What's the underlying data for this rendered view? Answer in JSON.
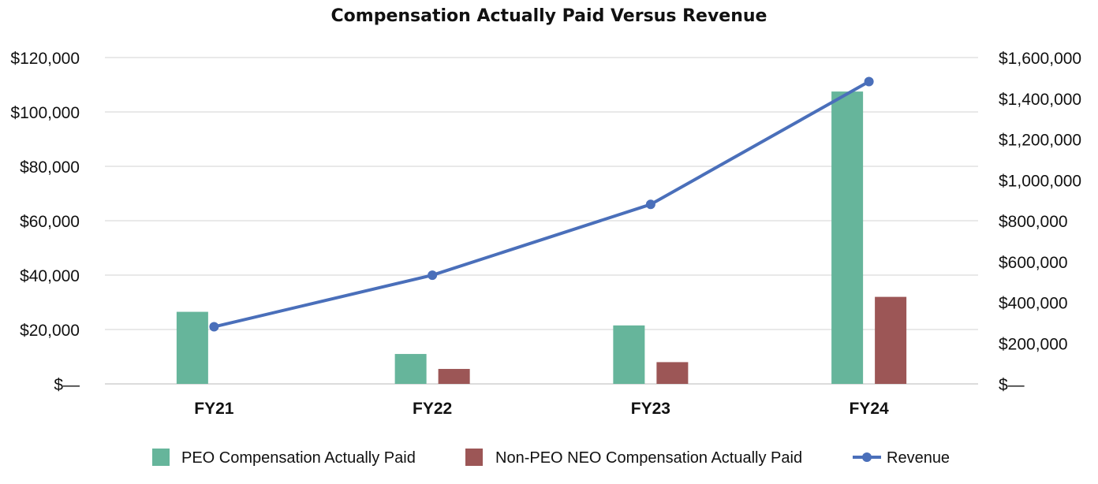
{
  "chart_data": {
    "type": "bar",
    "title": "Compensation Actually Paid Versus Revenue",
    "categories": [
      "FY21",
      "FY22",
      "FY23",
      "FY24"
    ],
    "series": [
      {
        "name": "PEO Compensation Actually Paid",
        "kind": "bar",
        "axis": "left",
        "color": "#66b59b",
        "values": [
          26500,
          11000,
          21500,
          107500
        ]
      },
      {
        "name": "Non-PEO NEO Compensation Actually Paid",
        "kind": "bar",
        "axis": "left",
        "color": "#9c5656",
        "values": [
          0,
          5500,
          8000,
          32000
        ]
      },
      {
        "name": "Revenue",
        "kind": "line",
        "axis": "right",
        "color": "#4a6fba",
        "values": [
          280000,
          533000,
          880000,
          1482000
        ]
      }
    ],
    "left_axis": {
      "ylim": [
        0,
        120000
      ],
      "ticks": [
        0,
        20000,
        40000,
        60000,
        80000,
        100000,
        120000
      ],
      "tick_labels": [
        "$—",
        "$20,000",
        "$40,000",
        "$60,000",
        "$80,000",
        "$100,000",
        "$120,000"
      ]
    },
    "right_axis": {
      "ylim": [
        0,
        1600000
      ],
      "ticks": [
        0,
        200000,
        400000,
        600000,
        800000,
        1000000,
        1200000,
        1400000,
        1600000
      ],
      "tick_labels": [
        "$—",
        "$200,000",
        "$400,000",
        "$600,000",
        "$800,000",
        "$1,000,000",
        "$1,200,000",
        "$1,400,000",
        "$1,600,000"
      ]
    },
    "grid": true,
    "legend": "bottom-center"
  }
}
